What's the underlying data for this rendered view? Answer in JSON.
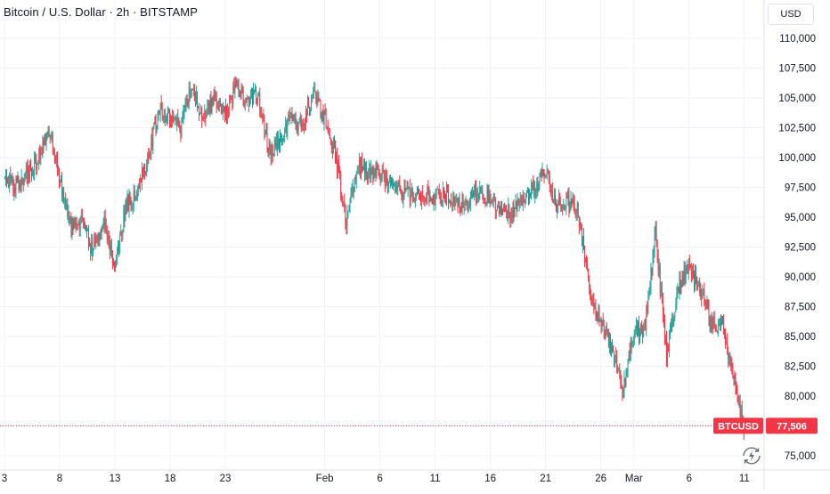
{
  "header": {
    "title": "Bitcoin / U.S. Dollar · 2h · BITSTAMP",
    "currency_label": "USD"
  },
  "price_badge": {
    "symbol": "BTCUSD",
    "value": "77,506"
  },
  "icons": {
    "reset": "lightning-reset-icon"
  },
  "colors": {
    "up": "#26a69a",
    "down": "#f23645",
    "badge": "#f23645",
    "grid": "#f0f3fa",
    "text": "#131722"
  },
  "chart_data": {
    "type": "candlestick",
    "title": "Bitcoin / U.S. Dollar · 2h · BITSTAMP",
    "ylim": [
      74500,
      111500
    ],
    "y_ticks": [
      "75,000",
      "77,500",
      "80,000",
      "82,500",
      "85,000",
      "87,500",
      "90,000",
      "92,500",
      "95,000",
      "97,500",
      "100,000",
      "102,500",
      "105,000",
      "107,500",
      "110,000"
    ],
    "y_tick_values": [
      75000,
      77500,
      80000,
      82500,
      85000,
      87500,
      90000,
      92500,
      95000,
      97500,
      100000,
      102500,
      105000,
      107500,
      110000
    ],
    "x_ticks": [
      "3",
      "8",
      "13",
      "18",
      "23",
      "Feb",
      "6",
      "11",
      "16",
      "21",
      "26",
      "Mar",
      "6",
      "11"
    ],
    "x_tick_dates": [
      "2025-01-03",
      "2025-01-08",
      "2025-01-13",
      "2025-01-18",
      "2025-01-23",
      "2025-02-01",
      "2025-02-06",
      "2025-02-11",
      "2025-02-16",
      "2025-02-21",
      "2025-02-26",
      "2025-03-01",
      "2025-03-06",
      "2025-03-11"
    ],
    "last_price": 77506,
    "last_price_label": "77,506",
    "series": [
      {
        "symbol": "BTCUSD",
        "points": [
          [
            "2025-01-03",
            98200
          ],
          [
            "2025-01-04",
            97600
          ],
          [
            "2025-01-05",
            98400
          ],
          [
            "2025-01-06",
            99800
          ],
          [
            "2025-01-07",
            102600
          ],
          [
            "2025-01-08",
            98400
          ],
          [
            "2025-01-09",
            94200
          ],
          [
            "2025-01-10",
            94600
          ],
          [
            "2025-01-11",
            92300
          ],
          [
            "2025-01-12",
            94800
          ],
          [
            "2025-01-13",
            90800
          ],
          [
            "2025-01-14",
            95600
          ],
          [
            "2025-01-15",
            97200
          ],
          [
            "2025-01-16",
            99800
          ],
          [
            "2025-01-17",
            104000
          ],
          [
            "2025-01-18",
            103400
          ],
          [
            "2025-01-19",
            102300
          ],
          [
            "2025-01-20",
            106500
          ],
          [
            "2025-01-21",
            103200
          ],
          [
            "2025-01-22",
            104800
          ],
          [
            "2025-01-23",
            103600
          ],
          [
            "2025-01-24",
            106000
          ],
          [
            "2025-01-25",
            104800
          ],
          [
            "2025-01-26",
            105200
          ],
          [
            "2025-01-27",
            100500
          ],
          [
            "2025-01-28",
            101500
          ],
          [
            "2025-01-29",
            103500
          ],
          [
            "2025-01-30",
            102500
          ],
          [
            "2025-01-31",
            105200
          ],
          [
            "2025-02-01",
            103200
          ],
          [
            "2025-02-02",
            100500
          ],
          [
            "2025-02-03",
            94500
          ],
          [
            "2025-02-04",
            99500
          ],
          [
            "2025-02-05",
            98500
          ],
          [
            "2025-02-06",
            98800
          ],
          [
            "2025-02-07",
            97800
          ],
          [
            "2025-02-08",
            97200
          ],
          [
            "2025-02-09",
            96800
          ],
          [
            "2025-02-10",
            97000
          ],
          [
            "2025-02-11",
            96700
          ],
          [
            "2025-02-12",
            97000
          ],
          [
            "2025-02-13",
            96200
          ],
          [
            "2025-02-14",
            96500
          ],
          [
            "2025-02-15",
            97200
          ],
          [
            "2025-02-16",
            96500
          ],
          [
            "2025-02-17",
            95800
          ],
          [
            "2025-02-18",
            95200
          ],
          [
            "2025-02-19",
            96600
          ],
          [
            "2025-02-20",
            97500
          ],
          [
            "2025-02-21",
            98700
          ],
          [
            "2025-02-22",
            96200
          ],
          [
            "2025-02-23",
            96400
          ],
          [
            "2025-02-24",
            95500
          ],
          [
            "2025-02-25",
            89000
          ],
          [
            "2025-02-26",
            86500
          ],
          [
            "2025-02-27",
            84300
          ],
          [
            "2025-02-28",
            80500
          ],
          [
            "2025-03-01",
            85200
          ],
          [
            "2025-03-02",
            85500
          ],
          [
            "2025-03-03",
            93700
          ],
          [
            "2025-03-04",
            83500
          ],
          [
            "2025-03-05",
            88900
          ],
          [
            "2025-03-06",
            90800
          ],
          [
            "2025-03-07",
            89200
          ],
          [
            "2025-03-08",
            86300
          ],
          [
            "2025-03-09",
            85800
          ],
          [
            "2025-03-10",
            82000
          ],
          [
            "2025-03-11",
            77506
          ]
        ]
      }
    ],
    "grid": true,
    "legend": "none"
  }
}
